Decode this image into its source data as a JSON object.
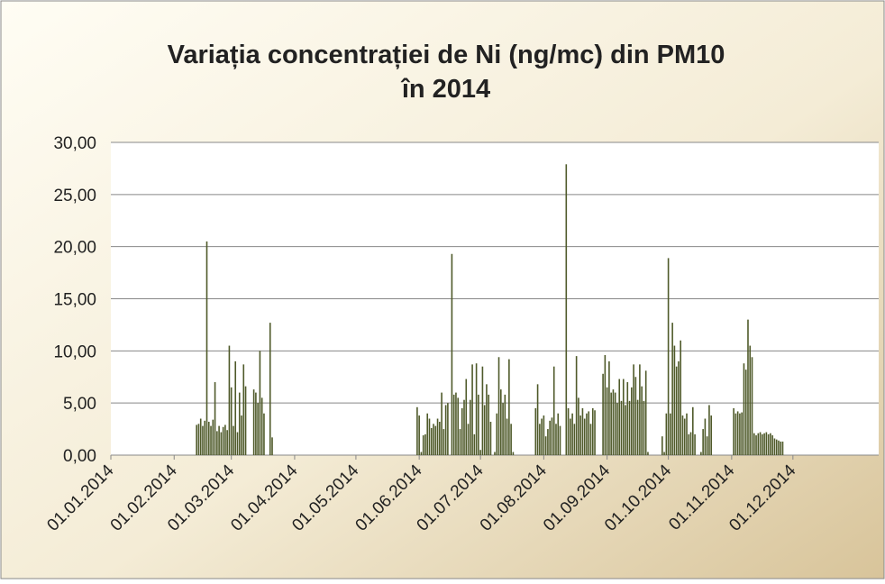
{
  "chart_data": {
    "type": "bar",
    "title": [
      "Variația concentrației de Ni (ng/mc) din PM10",
      "în 2014"
    ],
    "color": "#4f5a2a",
    "ylim": [
      0,
      30
    ],
    "yticks": [
      {
        "value": 0,
        "label": "0,00"
      },
      {
        "value": 5,
        "label": "5,00"
      },
      {
        "value": 10,
        "label": "10,00"
      },
      {
        "value": 15,
        "label": "15,00"
      },
      {
        "value": 20,
        "label": "20,00"
      },
      {
        "value": 25,
        "label": "25,00"
      },
      {
        "value": 30,
        "label": "30,00"
      }
    ],
    "xlim": [
      "01.01.2014",
      "12.01.2015"
    ],
    "xticks": [
      "01.01.2014",
      "01.02.2014",
      "01.03.2014",
      "01.04.2014",
      "01.05.2014",
      "01.06.2014",
      "01.07.2014",
      "01.08.2014",
      "01.09.2014",
      "01.10.2014",
      "01.11.2014",
      "01.12.2014"
    ],
    "grid": true,
    "x": [
      "12.02.2014",
      "13.02.2014",
      "14.02.2014",
      "15.02.2014",
      "16.02.2014",
      "17.02.2014",
      "18.02.2014",
      "19.02.2014",
      "20.02.2014",
      "21.02.2014",
      "22.02.2014",
      "23.02.2014",
      "24.02.2014",
      "25.02.2014",
      "26.02.2014",
      "27.02.2014",
      "28.02.2014",
      "01.03.2014",
      "02.03.2014",
      "03.03.2014",
      "04.03.2014",
      "05.03.2014",
      "06.03.2014",
      "07.03.2014",
      "08.03.2014",
      "12.03.2014",
      "13.03.2014",
      "14.03.2014",
      "15.03.2014",
      "16.03.2014",
      "17.03.2014",
      "20.03.2014",
      "21.03.2014",
      "31.05.2014",
      "01.06.2014",
      "02.06.2014",
      "03.06.2014",
      "04.06.2014",
      "05.06.2014",
      "06.06.2014",
      "07.06.2014",
      "08.06.2014",
      "09.06.2014",
      "10.06.2014",
      "11.06.2014",
      "12.06.2014",
      "13.06.2014",
      "14.06.2014",
      "15.06.2014",
      "17.06.2014",
      "18.06.2014",
      "19.06.2014",
      "20.06.2014",
      "21.06.2014",
      "22.06.2014",
      "23.06.2014",
      "24.06.2014",
      "25.06.2014",
      "26.06.2014",
      "27.06.2014",
      "28.06.2014",
      "29.06.2014",
      "30.06.2014",
      "01.07.2014",
      "02.07.2014",
      "03.07.2014",
      "04.07.2014",
      "05.07.2014",
      "06.07.2014",
      "08.07.2014",
      "09.07.2014",
      "10.07.2014",
      "11.07.2014",
      "12.07.2014",
      "13.07.2014",
      "14.07.2014",
      "15.07.2014",
      "16.07.2014",
      "17.07.2014",
      "28.07.2014",
      "29.07.2014",
      "30.07.2014",
      "31.07.2014",
      "01.08.2014",
      "02.08.2014",
      "03.08.2014",
      "04.08.2014",
      "05.08.2014",
      "06.08.2014",
      "07.08.2014",
      "08.08.2014",
      "09.08.2014",
      "12.08.2014",
      "13.08.2014",
      "14.08.2014",
      "15.08.2014",
      "16.08.2014",
      "17.08.2014",
      "18.08.2014",
      "19.08.2014",
      "20.08.2014",
      "21.08.2014",
      "22.08.2014",
      "23.08.2014",
      "24.08.2014",
      "25.08.2014",
      "26.08.2014",
      "30.08.2014",
      "31.08.2014",
      "01.09.2014",
      "02.09.2014",
      "03.09.2014",
      "04.09.2014",
      "05.09.2014",
      "06.09.2014",
      "07.09.2014",
      "08.09.2014",
      "09.09.2014",
      "10.09.2014",
      "11.09.2014",
      "12.09.2014",
      "13.09.2014",
      "14.09.2014",
      "15.09.2014",
      "16.09.2014",
      "17.09.2014",
      "18.09.2014",
      "19.09.2014",
      "20.09.2014",
      "21.09.2014",
      "28.09.2014",
      "29.09.2014",
      "30.09.2014",
      "01.10.2014",
      "02.10.2014",
      "03.10.2014",
      "04.10.2014",
      "05.10.2014",
      "06.10.2014",
      "07.10.2014",
      "08.10.2014",
      "09.10.2014",
      "10.10.2014",
      "11.10.2014",
      "12.10.2014",
      "13.10.2014",
      "14.10.2014",
      "17.10.2014",
      "18.10.2014",
      "19.10.2014",
      "20.10.2014",
      "21.10.2014",
      "22.10.2014",
      "02.11.2014",
      "03.11.2014",
      "04.11.2014",
      "05.11.2014",
      "06.11.2014",
      "07.11.2014",
      "08.11.2014",
      "09.11.2014",
      "10.11.2014",
      "11.11.2014",
      "12.11.2014",
      "13.11.2014",
      "14.11.2014",
      "15.11.2014",
      "16.11.2014",
      "17.11.2014",
      "18.11.2014",
      "19.11.2014",
      "20.11.2014",
      "21.11.2014",
      "22.11.2014",
      "23.11.2014",
      "24.11.2014",
      "25.11.2014",
      "26.11.2014"
    ],
    "values": [
      2.9,
      3.0,
      3.5,
      2.8,
      3.3,
      20.5,
      3.2,
      2.8,
      3.4,
      7.0,
      2.3,
      2.8,
      2.2,
      2.7,
      2.9,
      2.4,
      10.5,
      6.5,
      2.8,
      9.0,
      2.2,
      6.0,
      3.8,
      8.7,
      6.6,
      6.3,
      6.0,
      5.0,
      10.0,
      5.5,
      4.0,
      12.7,
      1.7,
      4.6,
      3.8,
      0.3,
      1.9,
      2.0,
      4.0,
      3.5,
      2.6,
      3.0,
      2.8,
      3.5,
      3.2,
      6.0,
      2.5,
      4.8,
      5.0,
      19.3,
      5.8,
      6.0,
      5.5,
      2.5,
      4.5,
      5.3,
      7.3,
      3.0,
      5.3,
      8.7,
      2.0,
      8.8,
      5.8,
      0.5,
      8.5,
      4.8,
      6.8,
      5.8,
      3.2,
      0.3,
      4.0,
      9.4,
      6.3,
      5.0,
      5.8,
      3.5,
      9.2,
      3.0,
      0.3,
      4.5,
      6.8,
      3.0,
      3.5,
      3.8,
      1.8,
      2.5,
      3.3,
      3.6,
      8.5,
      3.0,
      4.0,
      2.8,
      27.9,
      4.5,
      3.5,
      4.0,
      3.0,
      9.5,
      5.5,
      3.8,
      4.5,
      3.5,
      4.0,
      4.2,
      3.0,
      4.5,
      4.3,
      7.8,
      9.6,
      6.5,
      9.0,
      6.0,
      6.3,
      6.0,
      5.0,
      7.3,
      5.2,
      7.3,
      4.8,
      7.0,
      5.2,
      6.5,
      8.7,
      7.5,
      5.3,
      8.7,
      6.6,
      5.2,
      8.1,
      0.3,
      1.8,
      0.3,
      4.0,
      18.9,
      4.0,
      12.7,
      10.5,
      8.5,
      9.0,
      11.0,
      3.8,
      3.5,
      4.0,
      2.0,
      2.2,
      4.6,
      2.0,
      0.3,
      2.5,
      3.5,
      1.8,
      4.8,
      3.8,
      4.5,
      4.0,
      4.2,
      4.0,
      4.1,
      8.8,
      8.2,
      13.0,
      10.5,
      9.4,
      2.1,
      1.9,
      2.1,
      2.2,
      2.0,
      2.1,
      2.2,
      2.0,
      2.1,
      1.9,
      1.6,
      1.5,
      1.4,
      1.3,
      1.3
    ]
  }
}
